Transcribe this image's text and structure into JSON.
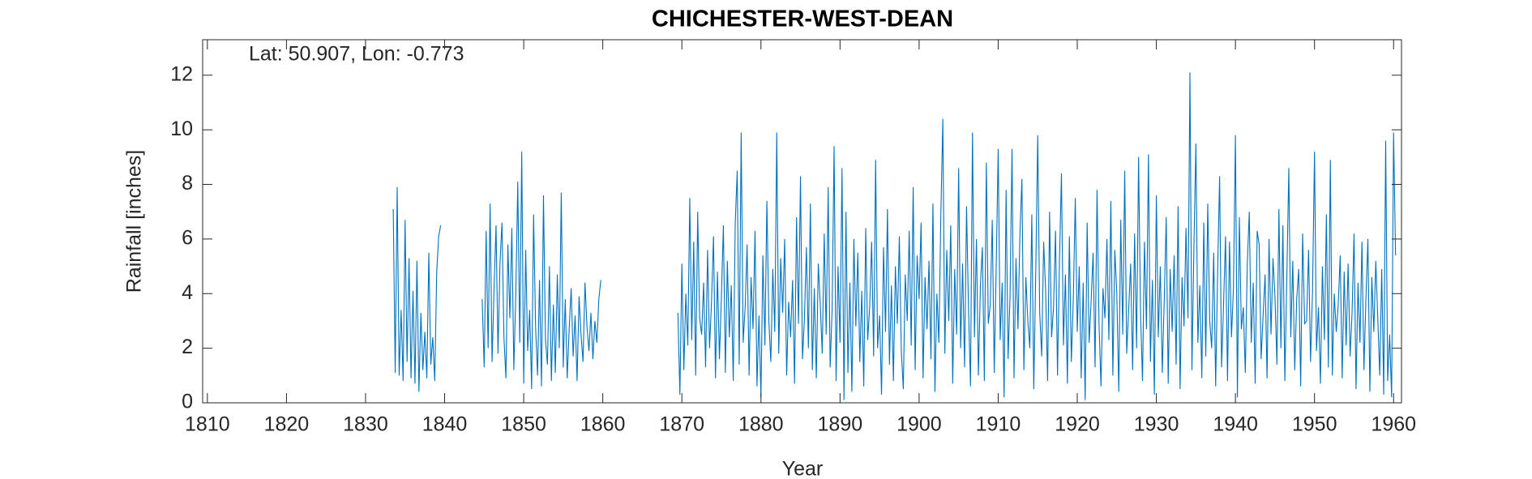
{
  "chart_data": {
    "type": "line",
    "title": "CHICHESTER-WEST-DEAN",
    "annotation": "Lat: 50.907, Lon: -0.773",
    "x_label": "Year",
    "y_label": "Rainfall [inches]",
    "color": "#0072bd",
    "xlim": [
      1809.4,
      1961
    ],
    "ylim": [
      0,
      13.3
    ],
    "xticks": [
      1810,
      1820,
      1830,
      1840,
      1850,
      1860,
      1870,
      1880,
      1890,
      1900,
      1910,
      1920,
      1930,
      1940,
      1950,
      1960
    ],
    "yticks": [
      0,
      2,
      4,
      6,
      8,
      10,
      12
    ],
    "x": [
      1833.5,
      1833.75,
      1834,
      1834.25,
      1834.5,
      1834.75,
      1835,
      1835.25,
      1835.5,
      1835.75,
      1836,
      1836.25,
      1836.5,
      1836.75,
      1837,
      1837.25,
      1837.5,
      1837.75,
      1838,
      1838.25,
      1838.5,
      1838.75,
      1839,
      1839.25,
      1839.5,
      1842,
      1844.75,
      1845,
      1845.25,
      1845.5,
      1845.75,
      1846,
      1846.25,
      1846.5,
      1846.75,
      1847,
      1847.25,
      1847.5,
      1847.75,
      1848,
      1848.25,
      1848.5,
      1848.75,
      1849,
      1849.25,
      1849.5,
      1849.75,
      1850,
      1850.25,
      1850.5,
      1850.75,
      1851,
      1851.25,
      1851.5,
      1851.75,
      1852,
      1852.25,
      1852.5,
      1852.75,
      1853,
      1853.25,
      1853.5,
      1853.75,
      1854,
      1854.25,
      1854.5,
      1854.75,
      1855,
      1855.25,
      1855.5,
      1855.75,
      1856,
      1856.25,
      1856.5,
      1856.75,
      1857,
      1857.25,
      1857.5,
      1857.75,
      1858,
      1858.25,
      1858.5,
      1858.75,
      1859,
      1859.25,
      1859.5,
      1859.75,
      1865,
      1869.5,
      1869.75,
      1870,
      1870.25,
      1870.5,
      1870.75,
      1871,
      1871.25,
      1871.5,
      1871.75,
      1872,
      1872.25,
      1872.5,
      1872.75,
      1873,
      1873.25,
      1873.5,
      1873.75,
      1874,
      1874.25,
      1874.5,
      1874.75,
      1875,
      1875.25,
      1875.5,
      1875.75,
      1876,
      1876.25,
      1876.5,
      1876.75,
      1877,
      1877.25,
      1877.5,
      1877.75,
      1878,
      1878.25,
      1878.5,
      1878.75,
      1879,
      1879.25,
      1879.5,
      1879.75,
      1880,
      1880.25,
      1880.5,
      1880.75,
      1881,
      1881.25,
      1881.5,
      1881.75,
      1882,
      1882.25,
      1882.5,
      1882.75,
      1883,
      1883.25,
      1883.5,
      1883.75,
      1884,
      1884.25,
      1884.5,
      1884.75,
      1885,
      1885.25,
      1885.5,
      1885.75,
      1886,
      1886.25,
      1886.5,
      1886.75,
      1887,
      1887.25,
      1887.5,
      1887.75,
      1888,
      1888.25,
      1888.5,
      1888.75,
      1889,
      1889.25,
      1889.5,
      1889.75,
      1890,
      1890.25,
      1890.5,
      1890.75,
      1891,
      1891.25,
      1891.5,
      1891.75,
      1892,
      1892.25,
      1892.5,
      1892.75,
      1893,
      1893.25,
      1893.5,
      1893.75,
      1894,
      1894.25,
      1894.5,
      1894.75,
      1895,
      1895.25,
      1895.5,
      1895.75,
      1896,
      1896.25,
      1896.5,
      1896.75,
      1897,
      1897.25,
      1897.5,
      1897.75,
      1898,
      1898.25,
      1898.5,
      1898.75,
      1899,
      1899.25,
      1899.5,
      1899.75,
      1900,
      1900.25,
      1900.5,
      1900.75,
      1901,
      1901.25,
      1901.5,
      1901.75,
      1902,
      1902.25,
      1902.5,
      1902.75,
      1903,
      1903.25,
      1903.5,
      1903.75,
      1904,
      1904.25,
      1904.5,
      1904.75,
      1905,
      1905.25,
      1905.5,
      1905.75,
      1906,
      1906.25,
      1906.5,
      1906.75,
      1907,
      1907.25,
      1907.5,
      1907.75,
      1908,
      1908.25,
      1908.5,
      1908.75,
      1909,
      1909.25,
      1909.5,
      1909.75,
      1910,
      1910.25,
      1910.5,
      1910.75,
      1911,
      1911.25,
      1911.5,
      1911.75,
      1912,
      1912.25,
      1912.5,
      1912.75,
      1913,
      1913.25,
      1913.5,
      1913.75,
      1914,
      1914.25,
      1914.5,
      1914.75,
      1915,
      1915.25,
      1915.5,
      1915.75,
      1916,
      1916.25,
      1916.5,
      1916.75,
      1917,
      1917.25,
      1917.5,
      1917.75,
      1918,
      1918.25,
      1918.5,
      1918.75,
      1919,
      1919.25,
      1919.5,
      1919.75,
      1920,
      1920.25,
      1920.5,
      1920.75,
      1921,
      1921.25,
      1921.5,
      1921.75,
      1922,
      1922.25,
      1922.5,
      1922.75,
      1923,
      1923.25,
      1923.5,
      1923.75,
      1924,
      1924.25,
      1924.5,
      1924.75,
      1925,
      1925.25,
      1925.5,
      1925.75,
      1926,
      1926.25,
      1926.5,
      1926.75,
      1927,
      1927.25,
      1927.5,
      1927.75,
      1928,
      1928.25,
      1928.5,
      1928.75,
      1929,
      1929.25,
      1929.5,
      1929.75,
      1930,
      1930.25,
      1930.5,
      1930.75,
      1931,
      1931.25,
      1931.5,
      1931.75,
      1932,
      1932.25,
      1932.5,
      1932.75,
      1933,
      1933.25,
      1933.5,
      1933.75,
      1934,
      1934.25,
      1934.5,
      1934.75,
      1935,
      1935.25,
      1935.5,
      1935.75,
      1936,
      1936.25,
      1936.5,
      1936.75,
      1937,
      1937.25,
      1937.5,
      1937.75,
      1938,
      1938.25,
      1938.5,
      1938.75,
      1939,
      1939.25,
      1939.5,
      1939.75,
      1940,
      1940.25,
      1940.5,
      1940.75,
      1941,
      1941.25,
      1941.5,
      1941.75,
      1942,
      1942.25,
      1942.5,
      1942.75,
      1943,
      1943.25,
      1943.5,
      1943.75,
      1944,
      1944.25,
      1944.5,
      1944.75,
      1945,
      1945.25,
      1945.5,
      1945.75,
      1946,
      1946.25,
      1946.5,
      1946.75,
      1947,
      1947.25,
      1947.5,
      1947.75,
      1948,
      1948.25,
      1948.5,
      1948.75,
      1949,
      1949.25,
      1949.5,
      1949.75,
      1950,
      1950.25,
      1950.5,
      1950.75,
      1951,
      1951.25,
      1951.5,
      1951.75,
      1952,
      1952.25,
      1952.5,
      1952.75,
      1953,
      1953.25,
      1953.5,
      1953.75,
      1954,
      1954.25,
      1954.5,
      1954.75,
      1955,
      1955.25,
      1955.5,
      1955.75,
      1956,
      1956.25,
      1956.5,
      1956.75,
      1957,
      1957.25,
      1957.5,
      1957.75,
      1958,
      1958.25,
      1958.5,
      1958.75,
      1959,
      1959.25,
      1959.5,
      1959.75,
      1960,
      1960.25
    ],
    "values": [
      7.1,
      1.1,
      7.9,
      1.0,
      3.4,
      0.8,
      6.7,
      1.5,
      5.3,
      0.9,
      4.1,
      0.7,
      5.2,
      0.4,
      3.3,
      1.2,
      2.6,
      0.9,
      5.5,
      1.4,
      2.4,
      0.8,
      4.8,
      6.1,
      6.5,
      null,
      3.8,
      1.3,
      6.3,
      2.0,
      7.3,
      1.5,
      4.2,
      6.5,
      1.8,
      5.1,
      6.6,
      2.4,
      0.9,
      5.8,
      3.1,
      6.4,
      1.2,
      4.0,
      8.1,
      2.2,
      9.2,
      0.7,
      5.6,
      1.9,
      3.4,
      0.5,
      6.9,
      2.8,
      1.0,
      4.5,
      0.6,
      7.6,
      2.3,
      1.4,
      5.0,
      0.8,
      3.6,
      1.1,
      4.7,
      2.0,
      7.7,
      1.3,
      3.8,
      0.9,
      2.7,
      4.2,
      1.7,
      3.2,
      0.8,
      3.9,
      2.5,
      1.5,
      4.4,
      2.8,
      1.9,
      3.3,
      1.6,
      3.0,
      2.2,
      3.8,
      4.5,
      null,
      3.3,
      0.3,
      5.1,
      1.2,
      4.0,
      2.1,
      7.5,
      2.3,
      5.9,
      1.0,
      7.0,
      3.1,
      2.5,
      4.4,
      1.3,
      5.6,
      2.0,
      3.7,
      6.1,
      0.9,
      4.8,
      1.6,
      3.9,
      6.5,
      1.1,
      5.2,
      2.4,
      4.3,
      0.8,
      6.6,
      8.5,
      1.4,
      9.9,
      2.2,
      3.5,
      5.8,
      1.0,
      4.6,
      2.7,
      6.3,
      0.6,
      3.2,
      0.2,
      5.4,
      2.1,
      7.4,
      3.0,
      1.5,
      4.9,
      2.6,
      9.9,
      1.8,
      5.3,
      3.3,
      6.0,
      1.0,
      3.7,
      2.4,
      4.5,
      0.7,
      6.8,
      2.9,
      8.3,
      1.6,
      3.1,
      5.7,
      2.0,
      7.3,
      1.2,
      4.2,
      0.9,
      5.1,
      3.6,
      1.8,
      6.2,
      2.5,
      7.9,
      1.3,
      3.4,
      9.4,
      0.8,
      5.0,
      2.2,
      8.6,
      0.1,
      7.0,
      1.1,
      4.4,
      0.4,
      6.0,
      2.8,
      5.5,
      1.5,
      4.1,
      0.6,
      6.4,
      2.3,
      3.5,
      5.9,
      1.7,
      8.9,
      2.0,
      3.2,
      0.3,
      5.7,
      2.6,
      7.1,
      1.4,
      4.3,
      0.8,
      5.0,
      2.9,
      6.1,
      1.9,
      0.5,
      4.7,
      3.0,
      6.3,
      2.1,
      7.9,
      1.2,
      5.4,
      3.8,
      6.6,
      0.9,
      4.6,
      2.7,
      5.2,
      1.6,
      7.3,
      0.4,
      4.0,
      2.2,
      6.9,
      10.4,
      1.8,
      5.6,
      3.0,
      6.5,
      0.7,
      4.9,
      2.5,
      8.6,
      2.0,
      5.1,
      1.3,
      7.2,
      3.4,
      0.6,
      9.9,
      2.4,
      6.0,
      1.0,
      4.3,
      5.7,
      0.8,
      8.8,
      2.9,
      3.6,
      6.7,
      1.1,
      5.0,
      9.3,
      2.3,
      4.4,
      0.2,
      7.8,
      1.6,
      3.9,
      9.3,
      0.9,
      5.3,
      2.7,
      6.2,
      8.2,
      1.2,
      4.6,
      3.0,
      2.0,
      6.9,
      0.5,
      4.8,
      9.8,
      3.3,
      1.7,
      5.9,
      4.1,
      0.8,
      7.0,
      2.4,
      3.5,
      6.3,
      1.0,
      5.2,
      8.4,
      2.1,
      4.7,
      0.7,
      6.1,
      1.5,
      3.8,
      7.5,
      2.6,
      5.0,
      0.9,
      4.4,
      0.1,
      6.6,
      2.2,
      3.7,
      5.5,
      1.3,
      7.8,
      2.9,
      0.6,
      4.2,
      3.1,
      6.0,
      2.3,
      7.4,
      1.0,
      5.6,
      4.0,
      0.4,
      6.7,
      2.5,
      8.5,
      1.8,
      3.4,
      5.1,
      1.2,
      6.2,
      2.0,
      9.0,
      3.3,
      0.8,
      5.9,
      2.7,
      9.1,
      1.5,
      4.5,
      0.3,
      7.6,
      2.4,
      5.0,
      1.1,
      3.8,
      6.8,
      0.7,
      4.9,
      2.6,
      5.4,
      1.4,
      7.2,
      0.5,
      4.6,
      2.8,
      6.4,
      3.1,
      12.1,
      1.2,
      5.7,
      9.5,
      2.2,
      4.3,
      0.9,
      6.6,
      1.7,
      7.3,
      3.0,
      2.0,
      5.5,
      0.6,
      4.8,
      8.3,
      1.3,
      3.6,
      6.1,
      0.8,
      5.9,
      2.4,
      4.2,
      9.8,
      0.2,
      6.8,
      2.7,
      3.5,
      1.1,
      5.1,
      7.0,
      2.2,
      4.4,
      0.7,
      6.3,
      5.8,
      1.6,
      3.2,
      4.7,
      0.9,
      6.0,
      2.5,
      5.3,
      3.9,
      1.4,
      7.1,
      2.0,
      6.5,
      0.8,
      4.6,
      8.6,
      2.4,
      5.2,
      1.2,
      3.8,
      4.9,
      0.6,
      6.2,
      2.9,
      3.0,
      5.6,
      1.5,
      4.1,
      9.2,
      1.9,
      3.5,
      0.7,
      5.0,
      2.3,
      6.9,
      1.3,
      8.9,
      1.0,
      4.0,
      2.6,
      3.6,
      5.4,
      0.9,
      4.8,
      2.1,
      5.1,
      1.7,
      3.3,
      6.2,
      0.5,
      4.4,
      2.2,
      5.9,
      1.2,
      3.8,
      6.0,
      0.4,
      4.6,
      2.6,
      5.2,
      3.1,
      1.0,
      4.9,
      0.3,
      9.6,
      0.8,
      2.5,
      0.2,
      9.9,
      5.4
    ]
  }
}
